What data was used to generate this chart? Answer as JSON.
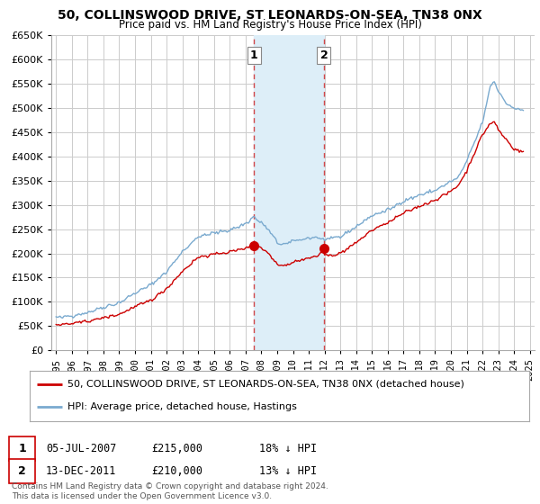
{
  "title": "50, COLLINSWOOD DRIVE, ST LEONARDS-ON-SEA, TN38 0NX",
  "subtitle": "Price paid vs. HM Land Registry's House Price Index (HPI)",
  "footnote": "Contains HM Land Registry data © Crown copyright and database right 2024.\nThis data is licensed under the Open Government Licence v3.0.",
  "legend_line1": "50, COLLINSWOOD DRIVE, ST LEONARDS-ON-SEA, TN38 0NX (detached house)",
  "legend_line2": "HPI: Average price, detached house, Hastings",
  "table_rows": [
    {
      "label": "1",
      "date": "05-JUL-2007",
      "price": "£215,000",
      "hpi": "18% ↓ HPI"
    },
    {
      "label": "2",
      "date": "13-DEC-2011",
      "price": "£210,000",
      "hpi": "13% ↓ HPI"
    }
  ],
  "sale1_x": 2007.54,
  "sale1_y": 215000,
  "sale2_x": 2011.96,
  "sale2_y": 210000,
  "shaded_xmin": 2007.54,
  "shaded_xmax": 2011.96,
  "red_color": "#cc0000",
  "blue_color": "#7aaacf",
  "shaded_color": "#ddeef8",
  "grid_color": "#cccccc",
  "background_color": "#ffffff",
  "ylim": [
    0,
    650000
  ],
  "ytick_step": 50000,
  "xlim_start": 1994.7,
  "xlim_end": 2025.3,
  "title_fontsize": 10,
  "subtitle_fontsize": 8.5
}
